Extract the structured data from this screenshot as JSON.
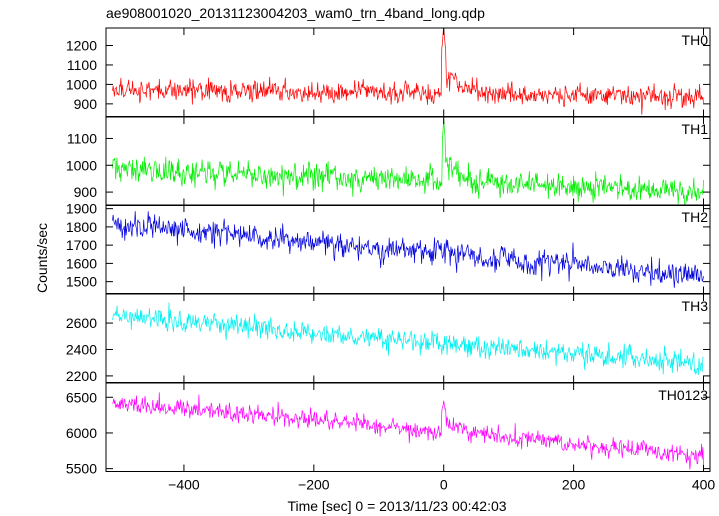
{
  "chart_data": {
    "type": "line",
    "title": "ae908001020_20131123004203_wam0_trn_4band_long.qdp",
    "xlabel": "Time [sec] 0 = 2013/11/23 00:42:03",
    "ylabel": "Counts/sec",
    "xlim": [
      -520,
      410
    ],
    "xticks": [
      -400,
      -200,
      0,
      200,
      400
    ],
    "grid": false,
    "panels": [
      {
        "label": "TH0",
        "color": "#ff0000",
        "ylim": [
          835,
          1290
        ],
        "yticks": [
          900,
          1000,
          1100,
          1200
        ],
        "trend": {
          "x": [
            -510,
            400
          ],
          "y": [
            975,
            935
          ]
        },
        "noise": 35,
        "burst": {
          "x": 0,
          "peak": 1290,
          "width": 3,
          "decay": 25
        }
      },
      {
        "label": "TH1",
        "color": "#00ee00",
        "ylim": [
          850,
          1180
        ],
        "yticks": [
          900,
          1000,
          1100
        ],
        "trend": {
          "x": [
            -510,
            400
          ],
          "y": [
            985,
            900
          ]
        },
        "noise": 32,
        "burst": {
          "x": 0,
          "peak": 1175,
          "width": 2,
          "decay": 20
        }
      },
      {
        "label": "TH2",
        "color": "#0000dd",
        "ylim": [
          1435,
          1920
        ],
        "yticks": [
          1500,
          1600,
          1700,
          1800,
          1900
        ],
        "trend": {
          "x": [
            -510,
            400
          ],
          "y": [
            1810,
            1530
          ]
        },
        "noise": 45,
        "burst": null
      },
      {
        "label": "TH3",
        "color": "#00f0f0",
        "ylim": [
          2150,
          2820
        ],
        "yticks": [
          2200,
          2400,
          2600
        ],
        "trend": {
          "x": [
            -510,
            400
          ],
          "y": [
            2650,
            2290
          ]
        },
        "noise": 55,
        "burst": null
      },
      {
        "label": "TH0123",
        "color": "#ff00ff",
        "ylim": [
          5460,
          6700
        ],
        "yticks": [
          5500,
          6000,
          6500
        ],
        "trend": {
          "x": [
            -510,
            400
          ],
          "y": [
            6430,
            5680
          ]
        },
        "noise": 80,
        "burst": {
          "x": 0,
          "peak": 6420,
          "width": 3,
          "decay": 25
        }
      }
    ]
  }
}
